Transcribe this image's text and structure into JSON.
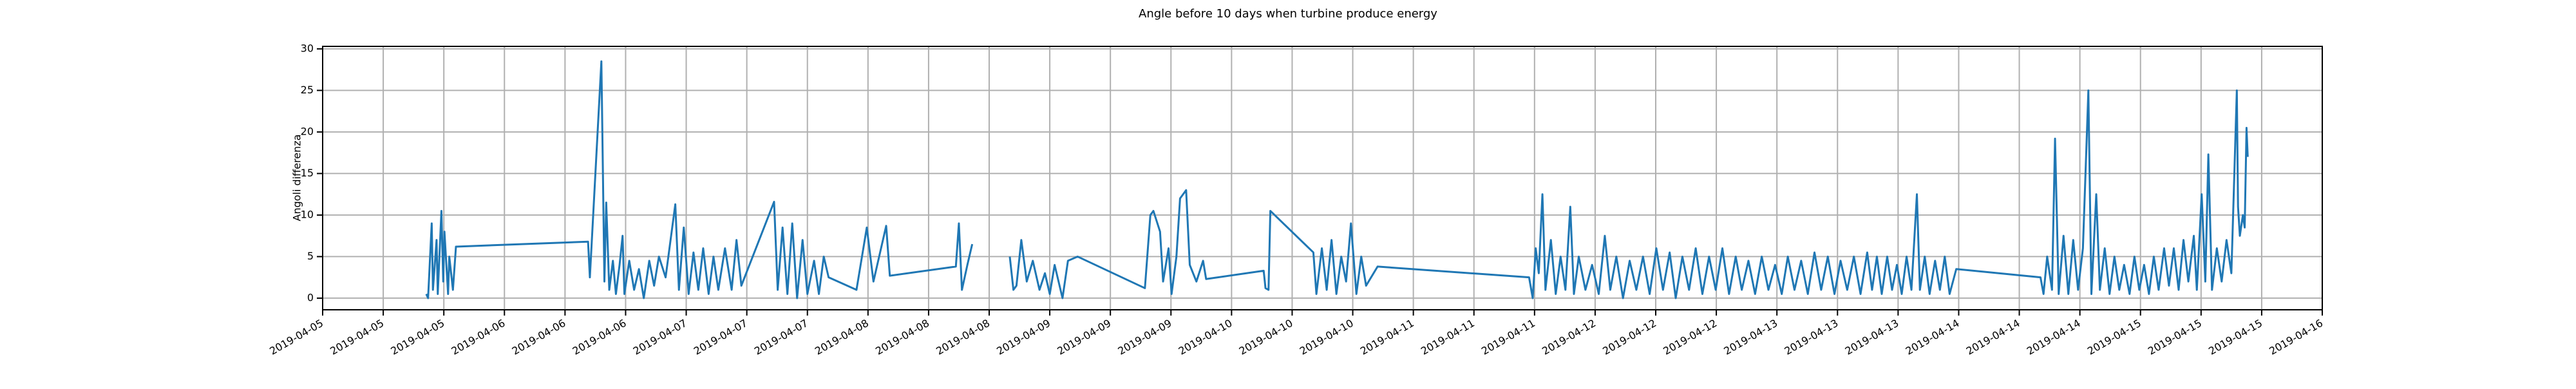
{
  "chart_data": {
    "type": "line",
    "title": "Angle before 10 days when turbine produce energy",
    "ylabel": "Angoli differenza",
    "color": "#1f77b4",
    "grid": true,
    "xlim": [
      0,
      33
    ],
    "ylim": [
      -1.4,
      30.3
    ],
    "yticks": [
      0,
      5,
      10,
      15,
      20,
      25,
      30
    ],
    "xticks": [
      {
        "value": 0,
        "label": "2019-04-05"
      },
      {
        "value": 1,
        "label": "2019-04-05"
      },
      {
        "value": 2,
        "label": "2019-04-05"
      },
      {
        "value": 3,
        "label": "2019-04-06"
      },
      {
        "value": 4,
        "label": "2019-04-06"
      },
      {
        "value": 5,
        "label": "2019-04-06"
      },
      {
        "value": 6,
        "label": "2019-04-07"
      },
      {
        "value": 7,
        "label": "2019-04-07"
      },
      {
        "value": 8,
        "label": "2019-04-07"
      },
      {
        "value": 9,
        "label": "2019-04-08"
      },
      {
        "value": 10,
        "label": "2019-04-08"
      },
      {
        "value": 11,
        "label": "2019-04-08"
      },
      {
        "value": 12,
        "label": "2019-04-09"
      },
      {
        "value": 13,
        "label": "2019-04-09"
      },
      {
        "value": 14,
        "label": "2019-04-09"
      },
      {
        "value": 15,
        "label": "2019-04-10"
      },
      {
        "value": 16,
        "label": "2019-04-10"
      },
      {
        "value": 17,
        "label": "2019-04-10"
      },
      {
        "value": 18,
        "label": "2019-04-11"
      },
      {
        "value": 19,
        "label": "2019-04-11"
      },
      {
        "value": 20,
        "label": "2019-04-11"
      },
      {
        "value": 21,
        "label": "2019-04-12"
      },
      {
        "value": 22,
        "label": "2019-04-12"
      },
      {
        "value": 23,
        "label": "2019-04-12"
      },
      {
        "value": 24,
        "label": "2019-04-13"
      },
      {
        "value": 25,
        "label": "2019-04-13"
      },
      {
        "value": 26,
        "label": "2019-04-13"
      },
      {
        "value": 27,
        "label": "2019-04-14"
      },
      {
        "value": 28,
        "label": "2019-04-14"
      },
      {
        "value": 29,
        "label": "2019-04-14"
      },
      {
        "value": 30,
        "label": "2019-04-15"
      },
      {
        "value": 31,
        "label": "2019-04-15"
      },
      {
        "value": 32,
        "label": "2019-04-15"
      },
      {
        "value": 33,
        "label": "2019-04-16"
      }
    ],
    "x": [
      1.71,
      1.74,
      1.8,
      1.82,
      1.88,
      1.9,
      1.96,
      1.99,
      2.01,
      2.07,
      2.09,
      2.15,
      2.2,
      4.38,
      4.41,
      4.6,
      4.65,
      4.68,
      4.73,
      4.79,
      4.84,
      4.9,
      4.95,
      4.98,
      5.06,
      5.14,
      5.22,
      5.3,
      5.39,
      5.47,
      5.55,
      5.66,
      5.82,
      5.88,
      5.96,
      6.04,
      6.12,
      6.2,
      6.28,
      6.37,
      6.45,
      6.53,
      6.64,
      6.75,
      6.83,
      6.91,
      7.45,
      7.51,
      7.59,
      7.67,
      7.75,
      7.83,
      7.92,
      8.0,
      8.11,
      8.19,
      8.27,
      8.35,
      8.81,
      8.98,
      9.09,
      9.3,
      9.36,
      10.45,
      10.5,
      10.55,
      10.64,
      10.72,
      null,
      11.34,
      11.4,
      11.45,
      11.53,
      11.62,
      11.72,
      11.83,
      11.92,
      12.0,
      12.08,
      12.21,
      12.3,
      12.46,
      13.57,
      13.66,
      13.71,
      13.82,
      13.87,
      13.96,
      14.01,
      14.09,
      14.15,
      14.25,
      14.31,
      14.42,
      14.53,
      14.58,
      15.53,
      15.56,
      15.61,
      15.64,
      16.35,
      16.4,
      16.49,
      16.57,
      16.65,
      16.73,
      16.81,
      16.89,
      16.97,
      17.06,
      17.14,
      17.22,
      17.41,
      19.91,
      19.97,
      20.02,
      20.07,
      20.13,
      20.18,
      20.27,
      20.35,
      20.43,
      20.51,
      20.59,
      20.65,
      20.73,
      20.84,
      20.95,
      21.06,
      21.16,
      21.25,
      21.35,
      21.46,
      21.57,
      21.68,
      21.79,
      21.9,
      22.01,
      22.12,
      22.23,
      22.33,
      22.44,
      22.55,
      22.66,
      22.77,
      22.88,
      22.99,
      23.1,
      23.21,
      23.32,
      23.42,
      23.53,
      23.64,
      23.75,
      23.86,
      23.97,
      24.08,
      24.18,
      24.29,
      24.4,
      24.51,
      24.62,
      24.73,
      24.84,
      24.95,
      25.05,
      25.16,
      25.27,
      25.38,
      25.49,
      25.57,
      25.65,
      25.73,
      25.82,
      25.9,
      25.98,
      26.06,
      26.14,
      26.22,
      26.31,
      26.36,
      26.44,
      26.52,
      26.61,
      26.69,
      26.77,
      26.85,
      26.96,
      28.35,
      28.4,
      28.46,
      28.54,
      28.59,
      28.65,
      28.73,
      28.81,
      28.89,
      28.97,
      29.05,
      29.14,
      29.19,
      29.27,
      29.33,
      29.41,
      29.49,
      29.57,
      29.65,
      29.73,
      29.82,
      29.9,
      29.98,
      30.06,
      30.14,
      30.22,
      30.3,
      30.39,
      30.47,
      30.55,
      30.63,
      30.71,
      30.79,
      30.88,
      30.93,
      31.01,
      31.07,
      31.12,
      31.18,
      31.26,
      31.34,
      31.42,
      31.5,
      31.59,
      31.61,
      31.64,
      31.69,
      31.72,
      31.75,
      31.77
    ],
    "values": [
      0.5,
      0,
      9,
      1,
      7,
      0.5,
      10.5,
      2,
      8,
      0.5,
      5,
      1,
      6.2,
      6.8,
      2.5,
      28.5,
      2,
      11.5,
      1,
      4.5,
      0.5,
      4,
      7.5,
      0.5,
      4.5,
      1,
      3.5,
      0,
      4.5,
      1.5,
      5,
      2.5,
      11.3,
      1,
      8.5,
      0.5,
      5.5,
      1,
      6,
      0.5,
      5,
      1,
      6,
      1,
      7,
      1.5,
      11.6,
      1,
      8.5,
      0.5,
      9,
      0,
      7,
      0.5,
      4.5,
      0.5,
      5,
      2.5,
      1,
      8.5,
      2,
      8.7,
      2.7,
      3.8,
      9,
      1,
      4,
      6.5,
      null,
      5,
      1,
      1.5,
      7,
      2,
      4.5,
      1,
      3,
      0.5,
      4,
      0,
      4.5,
      5,
      1.2,
      10,
      10.5,
      8,
      2,
      6,
      0.5,
      5,
      12,
      13,
      4,
      2,
      4.5,
      2.3,
      3.3,
      1.2,
      1,
      10.5,
      5.5,
      0.5,
      6,
      1,
      7,
      0.5,
      5,
      2,
      9,
      0.5,
      5,
      1.5,
      3.8,
      2.5,
      0,
      6,
      3,
      12.5,
      1,
      7,
      0.5,
      5,
      1,
      11,
      0.5,
      5,
      1,
      4,
      0.5,
      7.5,
      1,
      5,
      0,
      4.5,
      1,
      5,
      0.5,
      6,
      1,
      5.5,
      0,
      5,
      1,
      6,
      0.5,
      5,
      1,
      6,
      0.5,
      5,
      1,
      4.5,
      0.5,
      5,
      1,
      4,
      0.5,
      5,
      1,
      4.5,
      0.5,
      5.5,
      1,
      5,
      0.5,
      4.5,
      1,
      5,
      0.5,
      5.5,
      1,
      5,
      0.5,
      5,
      1,
      4,
      0.5,
      5,
      1,
      12.5,
      1,
      5,
      0.5,
      4.5,
      1,
      5,
      0.5,
      3.5,
      2.5,
      0.5,
      5,
      1,
      19.2,
      0.5,
      7.5,
      0.5,
      7,
      1,
      6,
      25,
      0.5,
      12.5,
      1,
      6,
      0.5,
      5,
      1,
      4,
      0.5,
      5,
      1,
      4,
      0.5,
      5,
      1,
      6,
      1.5,
      6,
      1,
      7,
      2,
      7.5,
      1,
      12.5,
      2,
      17.3,
      1,
      6,
      2,
      7,
      3,
      25,
      11,
      7.5,
      10,
      8.5,
      20.5,
      17
    ]
  }
}
